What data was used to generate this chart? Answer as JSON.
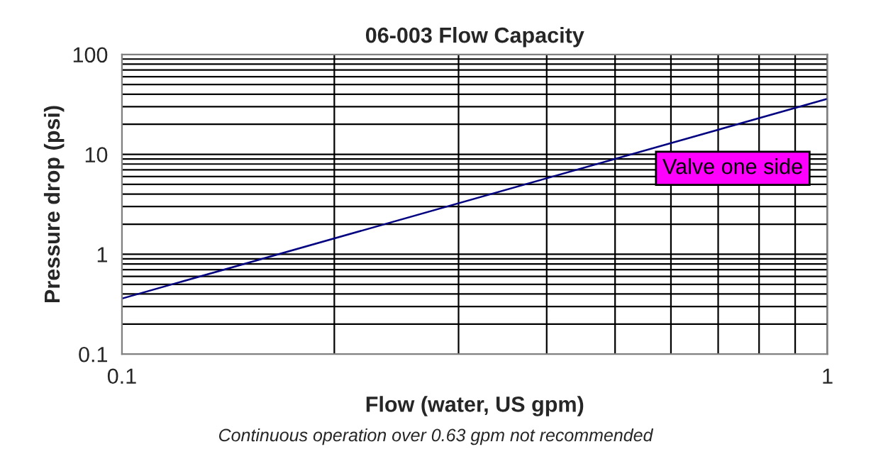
{
  "chart_data": {
    "type": "line",
    "title": "06-003 Flow Capacity",
    "xlabel": "Flow (water, US gpm)",
    "ylabel": "Pressure drop (psi)",
    "annotations": [
      "Continuous operation over 0.63 gpm not recommended"
    ],
    "x": [
      0.1,
      1
    ],
    "series": [
      {
        "name": "Valve one side",
        "color": "#000080",
        "values": [
          0.36,
          36
        ]
      }
    ],
    "log": "xy",
    "xlim": [
      0.1,
      1
    ],
    "ylim": [
      0.1,
      100
    ],
    "xticks": [
      0.1,
      1
    ],
    "yticks": [
      0.1,
      1,
      10,
      100
    ],
    "grid": true,
    "legend": "right",
    "marker": "none",
    "line_style": "solid"
  }
}
